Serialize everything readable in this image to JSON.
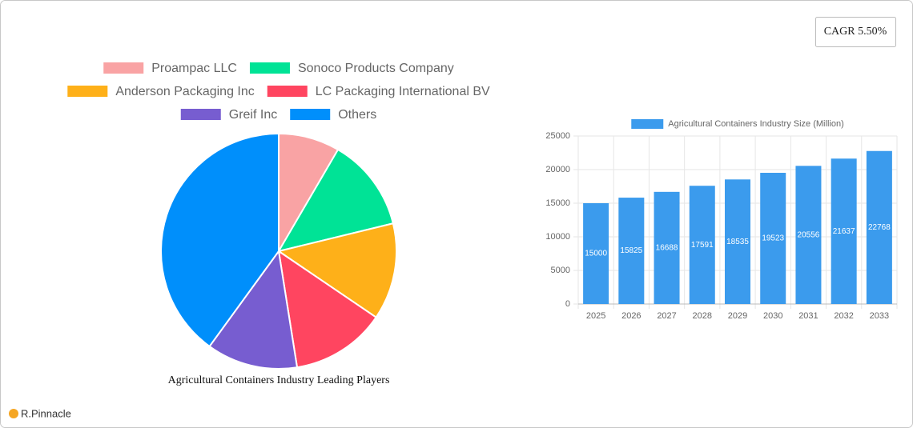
{
  "badge": "CAGR 5.50%",
  "brand": "R.Pinnacle",
  "chart_data": [
    {
      "type": "pie",
      "title": "Agricultural Containers Industry Leading Players",
      "categories": [
        "Proampac LLC",
        "Sonoco Products Company",
        "Anderson Packaging Inc",
        "LC Packaging International BV",
        "Greif Inc",
        "Others"
      ],
      "values": [
        8.4,
        12.8,
        13.3,
        13,
        12.5,
        40
      ],
      "colors": [
        "#f9a3a4",
        "#00e396",
        "#feb019",
        "#ff4560",
        "#775dd0",
        "#008ffb"
      ],
      "legend": "top"
    },
    {
      "type": "bar",
      "categories": [
        "2025",
        "2026",
        "2027",
        "2028",
        "2029",
        "2030",
        "2031",
        "2032",
        "2033"
      ],
      "series": [
        {
          "name": "Agricultural Containers Industry Size (Million)",
          "color": "#3b9bed",
          "values": [
            15000,
            15825,
            16688,
            17591,
            18535,
            19523,
            20556,
            21637,
            22768
          ]
        }
      ],
      "ylim": [
        0,
        25000
      ],
      "yticks": [
        0,
        5000,
        10000,
        15000,
        20000,
        25000
      ],
      "grid": true,
      "legend": "top"
    }
  ]
}
